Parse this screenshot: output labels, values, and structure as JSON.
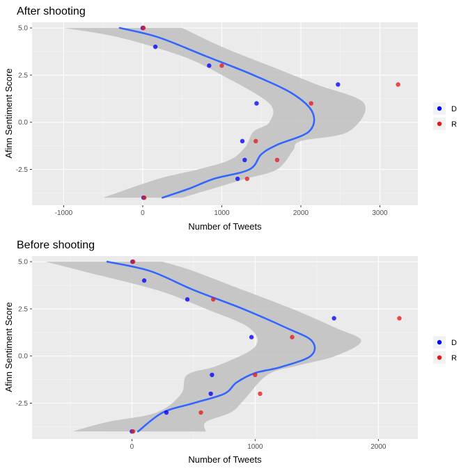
{
  "chart_data": [
    {
      "type": "scatter",
      "title": "After shooting",
      "xlabel": "Number of Tweets",
      "ylabel": "Afinn Sentiment Score",
      "xlim": [
        -1400,
        3480
      ],
      "ylim": [
        -4.4,
        5.3
      ],
      "x_ticks": [
        -1000,
        0,
        1000,
        2000,
        3000
      ],
      "y_ticks": [
        -2.5,
        0.0,
        2.5,
        5.0
      ],
      "x_tick_labels": [
        "-1000",
        "0",
        "1000",
        "2000",
        "3000"
      ],
      "y_tick_labels": [
        "-2.5",
        "0.0",
        "2.5",
        "5.0"
      ],
      "grid": true,
      "legend_position": "right",
      "series": [
        {
          "name": "D",
          "color": "#0000ff",
          "points": [
            [
              0,
              5
            ],
            [
              160,
              4
            ],
            [
              840,
              3
            ],
            [
              2470,
              2
            ],
            [
              1440,
              1
            ],
            [
              1260,
              -1
            ],
            [
              1290,
              -2
            ],
            [
              1200,
              -3
            ],
            [
              10,
              -4
            ]
          ]
        },
        {
          "name": "R",
          "color": "#e41a1c",
          "points": [
            [
              10,
              5
            ],
            [
              1000,
              3
            ],
            [
              3230,
              2
            ],
            [
              2130,
              1
            ],
            [
              1430,
              -1
            ],
            [
              1700,
              -2
            ],
            [
              1320,
              -3
            ],
            [
              20,
              -4
            ]
          ]
        }
      ],
      "smooth": {
        "color": "#3366ff",
        "curve": [
          [
            -290,
            5
          ],
          [
            200,
            4.5
          ],
          [
            800,
            3.5
          ],
          [
            1400,
            2.5
          ],
          [
            1900,
            1.5
          ],
          [
            2150,
            0.5
          ],
          [
            2100,
            -0.5
          ],
          [
            1700,
            -1.2
          ],
          [
            1500,
            -1.7
          ],
          [
            1350,
            -2.5
          ],
          [
            900,
            -3
          ],
          [
            600,
            -3.5
          ],
          [
            250,
            -4
          ]
        ],
        "band_upper": [
          [
            500,
            5
          ],
          [
            1000,
            4
          ],
          [
            1600,
            3
          ],
          [
            2200,
            2
          ],
          [
            2800,
            1
          ],
          [
            2600,
            -0.5
          ],
          [
            2000,
            -1
          ],
          [
            1900,
            -1.5
          ],
          [
            1700,
            -2.5
          ],
          [
            1300,
            -3
          ],
          [
            900,
            -3.5
          ],
          [
            500,
            -4
          ]
        ],
        "band_lower": [
          [
            -1000,
            5
          ],
          [
            -300,
            4.5
          ],
          [
            500,
            3.5
          ],
          [
            1000,
            2.5
          ],
          [
            1600,
            1
          ],
          [
            1600,
            0
          ],
          [
            1400,
            -0.5
          ],
          [
            1300,
            -1.3
          ],
          [
            1100,
            -2
          ],
          [
            700,
            -2.5
          ],
          [
            200,
            -3
          ],
          [
            -500,
            -4
          ]
        ]
      }
    },
    {
      "type": "scatter",
      "title": "Before shooting",
      "xlabel": "Number of Tweets",
      "ylabel": "Afinn Sentiment Score",
      "xlim": [
        -810,
        2320
      ],
      "ylim": [
        -4.4,
        5.3
      ],
      "x_ticks": [
        0,
        1000,
        2000
      ],
      "y_ticks": [
        -2.5,
        0.0,
        2.5,
        5.0
      ],
      "x_tick_labels": [
        "0",
        "1000",
        "2000"
      ],
      "y_tick_labels": [
        "-2.5",
        "0.0",
        "2.5",
        "5.0"
      ],
      "grid": true,
      "legend_position": "right",
      "series": [
        {
          "name": "D",
          "color": "#0000ff",
          "points": [
            [
              5,
              5
            ],
            [
              100,
              4
            ],
            [
              450,
              3
            ],
            [
              1640,
              2
            ],
            [
              970,
              1
            ],
            [
              650,
              -1
            ],
            [
              640,
              -2
            ],
            [
              280,
              -3
            ],
            [
              0,
              -4
            ]
          ]
        },
        {
          "name": "R",
          "color": "#e41a1c",
          "points": [
            [
              10,
              5
            ],
            [
              660,
              3
            ],
            [
              2170,
              2
            ],
            [
              1300,
              1
            ],
            [
              1000,
              -1
            ],
            [
              1040,
              -2
            ],
            [
              560,
              -3
            ],
            [
              10,
              -4
            ]
          ]
        }
      ],
      "smooth": {
        "color": "#3366ff",
        "curve": [
          [
            -200,
            5
          ],
          [
            150,
            4.5
          ],
          [
            500,
            3.5
          ],
          [
            900,
            2.5
          ],
          [
            1250,
            1.5
          ],
          [
            1460,
            0.8
          ],
          [
            1450,
            0
          ],
          [
            1200,
            -0.6
          ],
          [
            1000,
            -0.9
          ],
          [
            850,
            -1.4
          ],
          [
            750,
            -2
          ],
          [
            500,
            -2.5
          ],
          [
            250,
            -3
          ],
          [
            50,
            -4
          ]
        ],
        "band_upper": [
          [
            250,
            5
          ],
          [
            500,
            4.5
          ],
          [
            900,
            3.5
          ],
          [
            1300,
            2.5
          ],
          [
            1650,
            1.5
          ],
          [
            1860,
            0.8
          ],
          [
            1650,
            0
          ],
          [
            1350,
            -0.5
          ],
          [
            1100,
            -1
          ],
          [
            900,
            -2.4
          ],
          [
            800,
            -3
          ],
          [
            600,
            -3.5
          ],
          [
            600,
            -4
          ]
        ],
        "band_lower": [
          [
            -700,
            5
          ],
          [
            -400,
            4.5
          ],
          [
            200,
            3.5
          ],
          [
            600,
            2.5
          ],
          [
            950,
            1.5
          ],
          [
            1000,
            0.5
          ],
          [
            700,
            -0.5
          ],
          [
            450,
            -1
          ],
          [
            400,
            -2
          ],
          [
            200,
            -3
          ],
          [
            -200,
            -3.5
          ],
          [
            -480,
            -4
          ]
        ]
      }
    }
  ]
}
